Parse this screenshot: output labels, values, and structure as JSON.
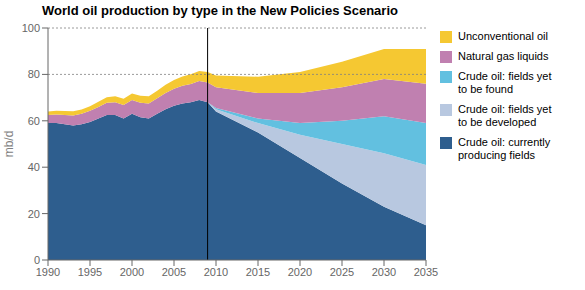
{
  "chart_data": {
    "type": "area",
    "stacked": true,
    "title": "World oil production by type in the New Policies Scenario",
    "ylabel": "mb/d",
    "xlim": [
      1990,
      2035
    ],
    "xticks": [
      1990,
      1995,
      2000,
      2005,
      2010,
      2015,
      2020,
      2025,
      2030,
      2035
    ],
    "ylim": [
      0,
      100
    ],
    "yticks": [
      0,
      20,
      40,
      60,
      80,
      100
    ],
    "grid": false,
    "legend": "right",
    "vlines": [
      2009
    ],
    "hlines": [
      80,
      100
    ],
    "x": [
      1990,
      1991,
      1992,
      1993,
      1994,
      1995,
      1996,
      1997,
      1998,
      1999,
      2000,
      2001,
      2002,
      2003,
      2004,
      2005,
      2006,
      2007,
      2008,
      2009,
      2010,
      2015,
      2020,
      2025,
      2030,
      2035
    ],
    "series": [
      {
        "name": "Crude oil: currently\nproducing fields",
        "color": "#2e5e8e",
        "values": [
          59,
          59,
          58.5,
          58,
          58.5,
          59.5,
          61,
          62.5,
          62.5,
          61,
          63,
          61.5,
          61,
          63,
          65,
          66.5,
          67.5,
          68,
          69,
          68,
          64,
          55,
          44,
          33,
          23,
          15
        ]
      },
      {
        "name": "Crude oil: fields yet\nto be developed",
        "color": "#b8c8e0",
        "values": [
          null,
          null,
          null,
          null,
          null,
          null,
          null,
          null,
          null,
          null,
          null,
          null,
          null,
          null,
          null,
          null,
          null,
          null,
          null,
          0,
          1,
          4,
          10,
          17,
          23,
          26
        ]
      },
      {
        "name": "Crude oil: fields yet\nto be found",
        "color": "#62c0e0",
        "values": [
          null,
          null,
          null,
          null,
          null,
          null,
          null,
          null,
          null,
          null,
          null,
          null,
          null,
          null,
          null,
          null,
          null,
          null,
          null,
          0,
          0.5,
          2,
          5,
          10,
          16,
          18
        ]
      },
      {
        "name": "Natural gas liquids",
        "color": "#c080b0",
        "values": [
          3.5,
          3.7,
          4.0,
          4.3,
          4.5,
          4.8,
          5.0,
          5.3,
          5.5,
          5.8,
          6.0,
          6.3,
          6.5,
          6.7,
          7.0,
          7.3,
          7.6,
          7.9,
          8.2,
          8.5,
          9.0,
          11,
          13,
          14.5,
          16,
          17
        ]
      },
      {
        "name": "Unconventional oil",
        "color": "#f5c832",
        "values": [
          1.5,
          1.6,
          1.7,
          1.8,
          1.9,
          2.0,
          2.2,
          2.4,
          2.6,
          2.7,
          2.8,
          3.0,
          3.1,
          3.3,
          3.5,
          3.8,
          4.0,
          4.2,
          4.3,
          4.5,
          5.0,
          7,
          9,
          11,
          13,
          15
        ]
      }
    ]
  }
}
